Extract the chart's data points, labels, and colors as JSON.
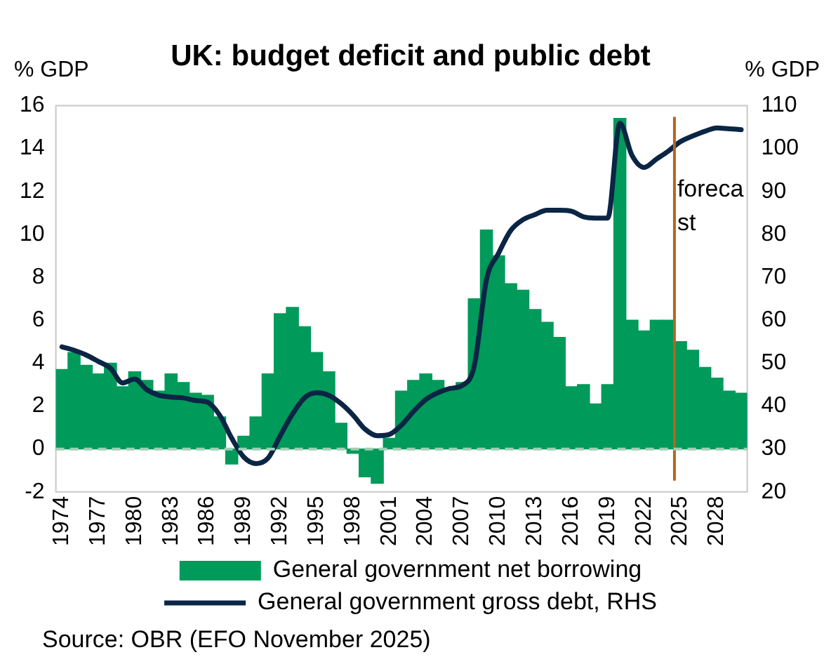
{
  "chart_data": {
    "type": "bar",
    "title": "UK: budget deficit and public debt",
    "ylabel": "% GDP",
    "y2label": "% GDP",
    "annotations": [
      "Source: OBR (EFO November 2025)"
    ],
    "x": [
      1974,
      1975,
      1976,
      1977,
      1978,
      1979,
      1980,
      1981,
      1982,
      1983,
      1984,
      1985,
      1986,
      1987,
      1988,
      1989,
      1990,
      1991,
      1992,
      1993,
      1994,
      1995,
      1996,
      1997,
      1998,
      1999,
      2000,
      2001,
      2002,
      2003,
      2004,
      2005,
      2006,
      2007,
      2008,
      2009,
      2010,
      2011,
      2012,
      2013,
      2014,
      2015,
      2016,
      2017,
      2018,
      2019,
      2020,
      2021,
      2022,
      2023,
      2024,
      2025,
      2026,
      2027,
      2028,
      2029,
      2030
    ],
    "xlim": [
      1973.5,
      2030.5
    ],
    "xticks": [
      1974,
      1977,
      1980,
      1983,
      1986,
      1989,
      1992,
      1995,
      1998,
      2001,
      2004,
      2007,
      2010,
      2013,
      2016,
      2019,
      2022,
      2025,
      2028
    ],
    "ylim": [
      -2,
      16
    ],
    "yticks": [
      -2,
      0,
      2,
      4,
      6,
      8,
      10,
      12,
      14,
      16
    ],
    "y2lim": [
      20,
      110
    ],
    "y2ticks": [
      20,
      30,
      40,
      50,
      60,
      70,
      80,
      90,
      100,
      110
    ],
    "series": [
      {
        "name": "General government net borrowing",
        "color": "#009a5a",
        "values": [
          3.7,
          4.5,
          3.9,
          3.5,
          4.0,
          2.9,
          3.6,
          3.2,
          2.7,
          3.5,
          3.1,
          2.6,
          2.5,
          1.5,
          -0.7,
          0.6,
          1.5,
          3.5,
          6.3,
          6.6,
          5.7,
          4.5,
          3.6,
          1.2,
          -0.2,
          -1.3,
          -1.6,
          0.5,
          2.7,
          3.2,
          3.5,
          3.2,
          2.8,
          3.1,
          7.0,
          10.2,
          9.0,
          7.7,
          7.4,
          6.5,
          5.9,
          5.2,
          2.9,
          3.0,
          2.1,
          3.0,
          15.4,
          6.0,
          5.5,
          6.0,
          6.0,
          5.0,
          4.6,
          3.8,
          3.3,
          2.7,
          2.6
        ]
      },
      {
        "name": "General government gross debt, RHS",
        "type": "line",
        "axis": "y2",
        "color": "#0b2545",
        "values": [
          53.8,
          53,
          51.9,
          50.4,
          48.8,
          45.4,
          46.3,
          43.8,
          42.5,
          42.1,
          41.9,
          41.3,
          40.9,
          37.9,
          32.5,
          28.1,
          26.6,
          27.9,
          33.1,
          38.1,
          41.9,
          43.1,
          42.5,
          40.6,
          37.9,
          34.6,
          33.1,
          33.4,
          35.6,
          38.8,
          41.5,
          43.1,
          44.1,
          44.8,
          49.4,
          69.4,
          75.6,
          80.9,
          83.4,
          84.6,
          85.6,
          85.6,
          85.4,
          84.1,
          83.8,
          83.8,
          105.9,
          98.4,
          95.6,
          97.5,
          99.4,
          101.6,
          102.9,
          104,
          104.8,
          104.6,
          104.4
        ]
      }
    ],
    "ref_lines": [
      {
        "axis": "x",
        "value": 2024.5,
        "label": "forecast",
        "color": "#b5651d"
      },
      {
        "axis": "y",
        "value": 0,
        "color": "#9fcfb5",
        "line_style": "dashed"
      }
    ],
    "legend": "bottom",
    "grid": false,
    "marker": "none"
  }
}
